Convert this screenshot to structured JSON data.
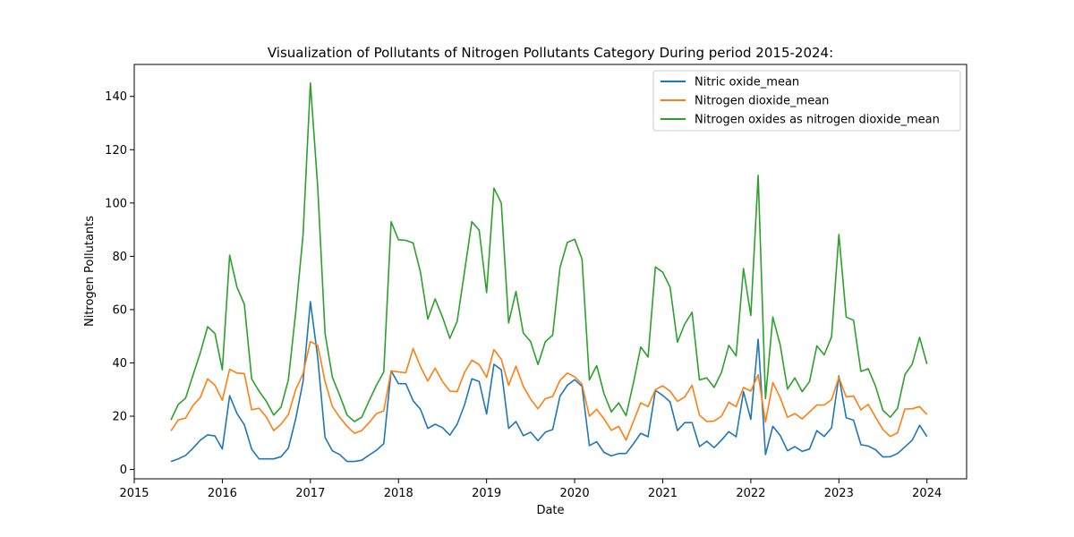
{
  "chart_data": {
    "type": "line",
    "title": "Visualization of Pollutants of Nitrogen Pollutants Category During period 2015-2024:",
    "xlabel": "Date",
    "ylabel": "Nitrogen Pollutants",
    "xlim": [
      2015.0,
      2024.45
    ],
    "ylim": [
      -3.5,
      152
    ],
    "x_ticks": [
      2015,
      2016,
      2017,
      2018,
      2019,
      2020,
      2021,
      2022,
      2023,
      2024
    ],
    "y_ticks": [
      0,
      20,
      40,
      60,
      80,
      100,
      120,
      140
    ],
    "legend_position": "upper-right",
    "x_start_date": "2015-06",
    "series": [
      {
        "name": "Nitric oxide_mean",
        "color": "#1f77b4",
        "values": [
          3,
          4,
          5.3,
          8,
          11,
          13,
          12.6,
          7.7,
          27.7,
          21,
          16.8,
          7.6,
          4,
          4,
          4,
          4.8,
          8,
          19,
          33,
          63,
          42,
          12,
          7,
          5.6,
          3,
          3,
          3.5,
          5.4,
          7.2,
          9.7,
          37,
          32.2,
          32.2,
          25.8,
          22.6,
          15.4,
          17,
          15.7,
          12.9,
          17,
          24.2,
          34,
          33,
          20.8,
          39.5,
          37.4,
          15.4,
          18,
          12.7,
          14,
          10.8,
          14,
          15,
          27.5,
          31.6,
          33.7,
          31.2,
          9,
          10.4,
          6.4,
          5.1,
          6,
          6,
          9.6,
          13.6,
          12.3,
          29.7,
          27.8,
          25.4,
          14.6,
          17.6,
          17.6,
          8.6,
          10.6,
          8.2,
          11,
          14.2,
          12.3,
          29.2,
          18.8,
          48.9,
          5.6,
          16.2,
          12.8,
          7,
          8.6,
          6.8,
          7.7,
          14.6,
          12.4,
          15.6,
          35.1,
          19.4,
          18.5,
          9.3,
          8.8,
          7.4,
          4.7,
          4.8,
          6,
          8.5,
          11,
          16.6,
          12.4
        ]
      },
      {
        "name": "Nitrogen dioxide_mean",
        "color": "#ff7f0e",
        "values": [
          14.5,
          18.6,
          19.3,
          24,
          27,
          34,
          31.6,
          26,
          37.6,
          36.2,
          36,
          22.4,
          23,
          19.7,
          14.6,
          17,
          20.6,
          30,
          36,
          48,
          46.6,
          33,
          23.6,
          19.6,
          16.2,
          13.6,
          14.6,
          17.6,
          21,
          22,
          37,
          36.6,
          36.3,
          45.4,
          38.6,
          33.2,
          38,
          33,
          29.4,
          29.2,
          36.4,
          41,
          39.4,
          34.6,
          45,
          41.4,
          31.6,
          38.8,
          31.2,
          26.4,
          22.8,
          26.6,
          27.4,
          33.4,
          36.2,
          34.8,
          32,
          20,
          22.6,
          19,
          14.7,
          16.2,
          11,
          18,
          25,
          23.6,
          30,
          31.4,
          29.4,
          25.6,
          27.2,
          31.6,
          20.4,
          18,
          18.2,
          20,
          25.2,
          23.6,
          30.8,
          29.4,
          35.6,
          17.8,
          32.6,
          27,
          19.6,
          21,
          19,
          21.6,
          24.2,
          24.2,
          26.2,
          34.6,
          27.2,
          27.6,
          22.4,
          24.4,
          19.6,
          15,
          12.4,
          13.8,
          22.7,
          22.8,
          23.6,
          20.6
        ]
      },
      {
        "name": "Nitrogen oxides as nitrogen dioxide_mean",
        "color": "#2ca02c",
        "values": [
          18.6,
          24.4,
          26.8,
          35.4,
          43.8,
          53.6,
          51,
          37.4,
          80.4,
          68.4,
          62,
          34,
          29.4,
          25.6,
          20.4,
          23.4,
          33.6,
          59,
          88,
          145,
          106,
          51,
          34.6,
          27.8,
          20.4,
          18,
          19.6,
          25.8,
          31.6,
          36.6,
          93,
          86.2,
          86,
          85,
          74,
          56.4,
          64,
          57.2,
          49.2,
          55.6,
          74.2,
          93,
          89.8,
          66.4,
          105.6,
          100,
          55,
          66.8,
          51.2,
          48,
          39.4,
          48,
          50.4,
          75.8,
          85.2,
          86.4,
          79,
          33.6,
          39,
          28.4,
          21.6,
          25,
          20.2,
          32.4,
          46,
          42.2,
          76,
          74,
          68.4,
          47.8,
          54.6,
          59,
          33.6,
          34.4,
          30.8,
          36.4,
          46.6,
          42.6,
          75.4,
          57.8,
          110.4,
          26.6,
          57.2,
          46.8,
          30.2,
          34.4,
          29.2,
          33,
          46.4,
          43,
          49.8,
          88.2,
          57.2,
          56,
          36.8,
          37.8,
          31.2,
          22.2,
          19.6,
          23,
          35.6,
          39.6,
          49.6,
          39.6
        ]
      }
    ]
  }
}
